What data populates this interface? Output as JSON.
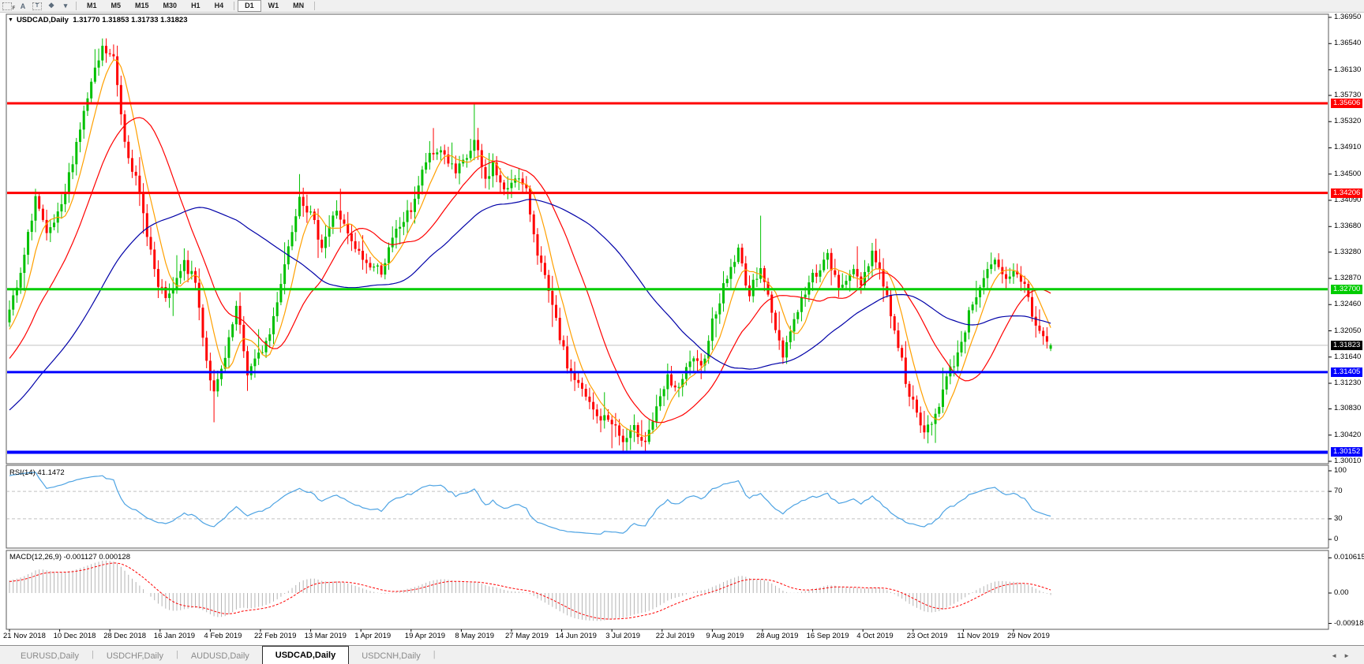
{
  "toolbar": {
    "tools": [
      {
        "id": "crosshair-grid-tool",
        "glyph": "",
        "boxed": true,
        "sub": "F"
      },
      {
        "id": "text-label-tool",
        "glyph": "A",
        "boxed": false,
        "sub": ""
      },
      {
        "id": "text-box-tool",
        "glyph": "T",
        "boxed": true,
        "sub": ""
      },
      {
        "id": "shapes-tool",
        "glyph": "❖",
        "boxed": false,
        "sub": ""
      },
      {
        "id": "shapes-dropdown",
        "glyph": "▾",
        "boxed": false,
        "sub": ""
      }
    ],
    "timeframes": [
      "M1",
      "M5",
      "M15",
      "M30",
      "H1",
      "H4",
      "D1",
      "W1",
      "MN"
    ],
    "active_timeframe": "D1",
    "separator_after": "H4"
  },
  "chart": {
    "dropdown_glyph": "▼",
    "title": "USDCAD,Daily",
    "ohlc_text": "1.31770 1.31853 1.31733 1.31823"
  },
  "price_axis": {
    "ticks": [
      "1.36950",
      "1.36540",
      "1.36130",
      "1.35730",
      "1.35320",
      "1.34910",
      "1.34500",
      "1.34090",
      "1.33680",
      "1.33280",
      "1.32870",
      "1.32460",
      "1.32050",
      "1.31640",
      "1.31230",
      "1.30830",
      "1.30420",
      "1.30010"
    ]
  },
  "levels": [
    {
      "price": 1.35606,
      "label": "1.35606",
      "color": "#ff0000",
      "width": 3
    },
    {
      "price": 1.34206,
      "label": "1.34206",
      "color": "#ff0000",
      "width": 3
    },
    {
      "price": 1.327,
      "label": "1.32700",
      "color": "#00cc00",
      "width": 3
    },
    {
      "price": 1.31405,
      "label": "1.31405",
      "color": "#0000ff",
      "width": 3
    },
    {
      "price": 1.30152,
      "label": "1.30152",
      "color": "#0000ff",
      "width": 4
    }
  ],
  "current_price": {
    "price": 1.31823,
    "label": "1.31823",
    "line_color": "#c0c0c0",
    "badge_bg": "#000000"
  },
  "rsi": {
    "label": "RSI(14)",
    "value": "41.1472",
    "ticks": [
      {
        "label": "100",
        "value": 100
      },
      {
        "label": "70",
        "value": 70
      },
      {
        "label": "30",
        "value": 30
      },
      {
        "label": "0",
        "value": 0
      }
    ],
    "dashed_levels": [
      70,
      30
    ],
    "line_color": "#4da3e3"
  },
  "macd": {
    "label": "MACD(12,26,9)",
    "values": "-0.001127 0.000128",
    "ticks": [
      {
        "label": "0.010615",
        "value": 0.010615
      },
      {
        "label": "0.00",
        "value": 0
      },
      {
        "label": "-0.009181",
        "value": -0.009181
      }
    ],
    "histogram_color": "#b4b4b4",
    "signal_color": "#ff0000"
  },
  "date_axis": {
    "labels": [
      "21 Nov 2018",
      "10 Dec 2018",
      "28 Dec 2018",
      "16 Jan 2019",
      "4 Feb 2019",
      "22 Feb 2019",
      "13 Mar 2019",
      "1 Apr 2019",
      "19 Apr 2019",
      "8 May 2019",
      "27 May 2019",
      "14 Jun 2019",
      "3 Jul 2019",
      "22 Jul 2019",
      "9 Aug 2019",
      "28 Aug 2019",
      "16 Sep 2019",
      "4 Oct 2019",
      "23 Oct 2019",
      "11 Nov 2019",
      "29 Nov 2019"
    ]
  },
  "tabs": {
    "items": [
      {
        "label": "EURUSD,Daily",
        "active": false
      },
      {
        "label": "USDCHF,Daily",
        "active": false
      },
      {
        "label": "AUDUSD,Daily",
        "active": false
      },
      {
        "label": "USDCAD,Daily",
        "active": true
      },
      {
        "label": "USDCNH,Daily",
        "active": false
      }
    ],
    "scroll_left": "◄",
    "scroll_right": "►"
  },
  "chart_data": {
    "type": "candlestick",
    "title": "USDCAD,Daily",
    "symbol": "USDCAD",
    "timeframe": "Daily",
    "last_bar": {
      "open": 1.3177,
      "high": 1.31853,
      "low": 1.31733,
      "close": 1.31823
    },
    "n_candles": 281,
    "price_axis_range": {
      "top_tick": 1.3695,
      "bottom_tick": 1.3001
    },
    "up_color": "#00c000",
    "down_color": "#ff0000",
    "noise_seed": 7,
    "close_noise": 0.00085,
    "wick_noise": 0.0016,
    "pre_waypoints": [
      [
        -60,
        1.295
      ],
      [
        -45,
        1.3
      ],
      [
        -30,
        1.306
      ],
      [
        -15,
        1.313
      ],
      [
        -5,
        1.319
      ]
    ],
    "waypoints": [
      [
        0,
        1.3235
      ],
      [
        3,
        1.329
      ],
      [
        7,
        1.3415
      ],
      [
        10,
        1.335
      ],
      [
        14,
        1.3395
      ],
      [
        18,
        1.35
      ],
      [
        22,
        1.359
      ],
      [
        25,
        1.3645
      ],
      [
        28,
        1.363
      ],
      [
        31,
        1.3505
      ],
      [
        34,
        1.344
      ],
      [
        37,
        1.336
      ],
      [
        40,
        1.327
      ],
      [
        43,
        1.3255
      ],
      [
        47,
        1.331
      ],
      [
        50,
        1.328
      ],
      [
        53,
        1.316
      ],
      [
        55,
        1.3105
      ],
      [
        58,
        1.316
      ],
      [
        61,
        1.324
      ],
      [
        64,
        1.314
      ],
      [
        67,
        1.3165
      ],
      [
        70,
        1.32
      ],
      [
        74,
        1.331
      ],
      [
        78,
        1.342
      ],
      [
        81,
        1.3385
      ],
      [
        84,
        1.334
      ],
      [
        88,
        1.3395
      ],
      [
        92,
        1.334
      ],
      [
        96,
        1.331
      ],
      [
        100,
        1.33
      ],
      [
        104,
        1.336
      ],
      [
        108,
        1.3395
      ],
      [
        112,
        1.347
      ],
      [
        116,
        1.349
      ],
      [
        120,
        1.345
      ],
      [
        123,
        1.3475
      ],
      [
        125,
        1.35
      ],
      [
        128,
        1.344
      ],
      [
        130,
        1.3465
      ],
      [
        133,
        1.342
      ],
      [
        136,
        1.345
      ],
      [
        139,
        1.342
      ],
      [
        142,
        1.333
      ],
      [
        146,
        1.324
      ],
      [
        150,
        1.315
      ],
      [
        154,
        1.311
      ],
      [
        158,
        1.307
      ],
      [
        162,
        1.3065
      ],
      [
        165,
        1.303
      ],
      [
        168,
        1.305
      ],
      [
        171,
        1.3035
      ],
      [
        174,
        1.308
      ],
      [
        177,
        1.313
      ],
      [
        180,
        1.311
      ],
      [
        183,
        1.316
      ],
      [
        186,
        1.3145
      ],
      [
        189,
        1.322
      ],
      [
        193,
        1.329
      ],
      [
        196,
        1.333
      ],
      [
        199,
        1.326
      ],
      [
        202,
        1.331
      ],
      [
        205,
        1.323
      ],
      [
        208,
        1.317
      ],
      [
        212,
        1.324
      ],
      [
        216,
        1.329
      ],
      [
        220,
        1.332
      ],
      [
        223,
        1.327
      ],
      [
        226,
        1.33
      ],
      [
        229,
        1.328
      ],
      [
        232,
        1.333
      ],
      [
        235,
        1.328
      ],
      [
        238,
        1.321
      ],
      [
        241,
        1.313
      ],
      [
        244,
        1.307
      ],
      [
        246,
        1.3045
      ],
      [
        249,
        1.3075
      ],
      [
        252,
        1.313
      ],
      [
        255,
        1.317
      ],
      [
        257,
        1.321
      ],
      [
        259,
        1.325
      ],
      [
        262,
        1.329
      ],
      [
        265,
        1.331
      ],
      [
        268,
        1.328
      ],
      [
        270,
        1.3295
      ],
      [
        273,
        1.328
      ],
      [
        275,
        1.323
      ],
      [
        277,
        1.3205
      ],
      [
        279,
        1.3185
      ],
      [
        280,
        1.31823
      ]
    ],
    "anchor_highs": {
      "25": 1.3662,
      "78": 1.345,
      "114": 1.3522,
      "125": 1.3561,
      "202": 1.3385,
      "280": 1.31853
    },
    "anchor_lows": {
      "55": 1.3062,
      "165": 1.3016,
      "171": 1.3016,
      "246": 1.3036,
      "280": 1.31733
    },
    "anchor_opens": {
      "280": 1.3177
    },
    "moving_averages": [
      {
        "name": "fast",
        "type": "sma",
        "period": 7,
        "color": "#ffa000"
      },
      {
        "name": "medium",
        "type": "sma",
        "period": 21,
        "color": "#ff0000"
      },
      {
        "name": "slow",
        "type": "sma",
        "period": 55,
        "color": "#0000a8"
      }
    ],
    "indicators": [
      {
        "name": "RSI",
        "period": 14,
        "last_value": 41.1472
      },
      {
        "name": "MACD",
        "fast": 12,
        "slow": 26,
        "signal": 9,
        "last_main": -0.001127,
        "last_signal": 0.000128
      }
    ]
  }
}
